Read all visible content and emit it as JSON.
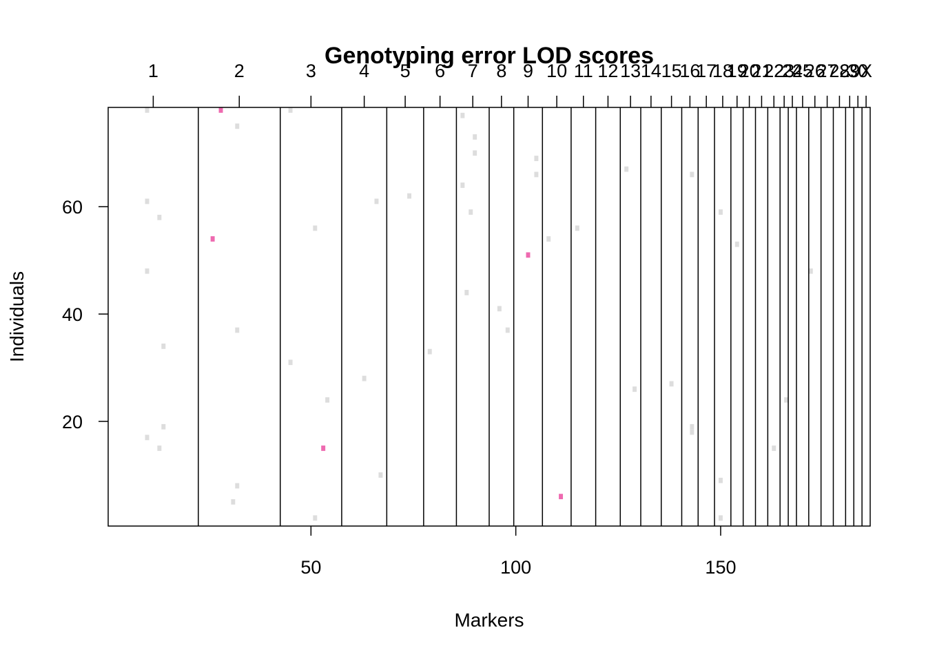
{
  "chart_data": {
    "type": "heatmap",
    "title": "Genotyping error LOD scores",
    "xlabel": "Markers",
    "ylabel": "Individuals",
    "xlim": [
      0.5,
      186.5
    ],
    "ylim": [
      0.5,
      78.5
    ],
    "x_ticks": [
      50,
      100,
      150
    ],
    "y_ticks": [
      20,
      40,
      60
    ],
    "chromosomes": [
      {
        "label": "1",
        "start": 0.5,
        "end": 22.5
      },
      {
        "label": "2",
        "start": 22.5,
        "end": 42.5
      },
      {
        "label": "3",
        "start": 42.5,
        "end": 57.5
      },
      {
        "label": "4",
        "start": 57.5,
        "end": 68.5
      },
      {
        "label": "5",
        "start": 68.5,
        "end": 77.5
      },
      {
        "label": "6",
        "start": 77.5,
        "end": 85.5
      },
      {
        "label": "7",
        "start": 85.5,
        "end": 93.5
      },
      {
        "label": "8",
        "start": 93.5,
        "end": 99.5
      },
      {
        "label": "9",
        "start": 99.5,
        "end": 106.5
      },
      {
        "label": "10",
        "start": 106.5,
        "end": 113.5
      },
      {
        "label": "11",
        "start": 113.5,
        "end": 119.5
      },
      {
        "label": "12",
        "start": 119.5,
        "end": 125.5
      },
      {
        "label": "13",
        "start": 125.5,
        "end": 130.5
      },
      {
        "label": "14",
        "start": 130.5,
        "end": 135.5
      },
      {
        "label": "15",
        "start": 135.5,
        "end": 140.5
      },
      {
        "label": "16",
        "start": 140.5,
        "end": 144.5
      },
      {
        "label": "17",
        "start": 144.5,
        "end": 148.5
      },
      {
        "label": "18",
        "start": 148.5,
        "end": 152.5
      },
      {
        "label": "19",
        "start": 152.5,
        "end": 155.5
      },
      {
        "label": "20",
        "start": 155.5,
        "end": 158.5
      },
      {
        "label": "21",
        "start": 158.5,
        "end": 161.5
      },
      {
        "label": "22",
        "start": 161.5,
        "end": 164.5
      },
      {
        "label": "23",
        "start": 164.5,
        "end": 166.5
      },
      {
        "label": "24",
        "start": 166.5,
        "end": 168.5
      },
      {
        "label": "25",
        "start": 168.5,
        "end": 171.5
      },
      {
        "label": "26",
        "start": 171.5,
        "end": 174.5
      },
      {
        "label": "27",
        "start": 174.5,
        "end": 177.5
      },
      {
        "label": "28",
        "start": 177.5,
        "end": 180.5
      },
      {
        "label": "29",
        "start": 180.5,
        "end": 182.5
      },
      {
        "label": "30",
        "start": 182.5,
        "end": 184.5
      },
      {
        "label": "X",
        "start": 184.5,
        "end": 186.5
      }
    ],
    "colors": {
      "low": "#dddddd",
      "high": "#ee6ab0",
      "frame": "#000000"
    },
    "cells": [
      {
        "x": 10,
        "y": 78,
        "level": "low"
      },
      {
        "x": 10,
        "y": 61,
        "level": "low"
      },
      {
        "x": 13,
        "y": 58,
        "level": "low"
      },
      {
        "x": 10,
        "y": 48,
        "level": "low"
      },
      {
        "x": 14,
        "y": 34,
        "level": "low"
      },
      {
        "x": 14,
        "y": 19,
        "level": "low"
      },
      {
        "x": 10,
        "y": 17,
        "level": "low"
      },
      {
        "x": 13,
        "y": 15,
        "level": "low"
      },
      {
        "x": 28,
        "y": 78,
        "level": "high"
      },
      {
        "x": 32,
        "y": 75,
        "level": "low"
      },
      {
        "x": 26,
        "y": 54,
        "level": "high"
      },
      {
        "x": 32,
        "y": 37,
        "level": "low"
      },
      {
        "x": 32,
        "y": 8,
        "level": "low"
      },
      {
        "x": 31,
        "y": 5,
        "level": "low"
      },
      {
        "x": 45,
        "y": 78,
        "level": "low"
      },
      {
        "x": 51,
        "y": 56,
        "level": "low"
      },
      {
        "x": 45,
        "y": 31,
        "level": "low"
      },
      {
        "x": 54,
        "y": 24,
        "level": "low"
      },
      {
        "x": 53,
        "y": 15,
        "level": "high"
      },
      {
        "x": 51,
        "y": 2,
        "level": "low"
      },
      {
        "x": 66,
        "y": 61,
        "level": "low"
      },
      {
        "x": 63,
        "y": 28,
        "level": "low"
      },
      {
        "x": 67,
        "y": 10,
        "level": "low"
      },
      {
        "x": 74,
        "y": 62,
        "level": "low"
      },
      {
        "x": 79,
        "y": 33,
        "level": "low"
      },
      {
        "x": 87,
        "y": 77,
        "level": "low"
      },
      {
        "x": 90,
        "y": 73,
        "level": "low"
      },
      {
        "x": 90,
        "y": 70,
        "level": "low"
      },
      {
        "x": 87,
        "y": 64,
        "level": "low"
      },
      {
        "x": 89,
        "y": 59,
        "level": "low"
      },
      {
        "x": 88,
        "y": 44,
        "level": "low"
      },
      {
        "x": 96,
        "y": 41,
        "level": "low"
      },
      {
        "x": 98,
        "y": 37,
        "level": "low"
      },
      {
        "x": 105,
        "y": 69,
        "level": "low"
      },
      {
        "x": 105,
        "y": 66,
        "level": "low"
      },
      {
        "x": 103,
        "y": 51,
        "level": "high"
      },
      {
        "x": 108,
        "y": 54,
        "level": "low"
      },
      {
        "x": 111,
        "y": 6,
        "level": "high"
      },
      {
        "x": 115,
        "y": 56,
        "level": "low"
      },
      {
        "x": 127,
        "y": 67,
        "level": "low"
      },
      {
        "x": 129,
        "y": 26,
        "level": "low"
      },
      {
        "x": 138,
        "y": 27,
        "level": "low"
      },
      {
        "x": 143,
        "y": 66,
        "level": "low"
      },
      {
        "x": 143,
        "y": 19,
        "level": "low"
      },
      {
        "x": 143,
        "y": 18,
        "level": "low"
      },
      {
        "x": 150,
        "y": 59,
        "level": "low"
      },
      {
        "x": 150,
        "y": 9,
        "level": "low"
      },
      {
        "x": 150,
        "y": 2,
        "level": "low"
      },
      {
        "x": 154,
        "y": 53,
        "level": "low"
      },
      {
        "x": 163,
        "y": 15,
        "level": "low"
      },
      {
        "x": 166,
        "y": 24,
        "level": "low"
      },
      {
        "x": 172,
        "y": 48,
        "level": "low"
      }
    ]
  }
}
